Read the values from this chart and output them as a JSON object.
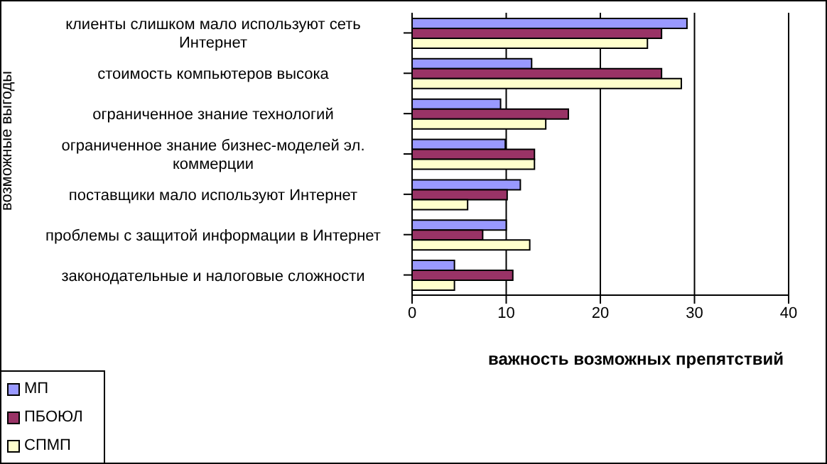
{
  "chart_data": {
    "type": "bar",
    "orientation": "horizontal",
    "xlabel": "важность возможных препятствий",
    "ylabel": "возможные выгоды",
    "categories": [
      "клиенты слишком мало используют сеть Интернет",
      "стоимость компьютеров высока",
      "ограниченное знание технологий",
      "ограниченное знание бизнес-моделей эл. коммерции",
      "поставщики мало используют Интернет",
      "проблемы с защитой информации в Интернет",
      "законодательные и налоговые сложности"
    ],
    "series": [
      {
        "name": "МП",
        "color": "#9999ff",
        "values": [
          29.2,
          12.7,
          9.4,
          9.9,
          11.5,
          10.0,
          4.5
        ]
      },
      {
        "name": "ПБОЮЛ",
        "color": "#993366",
        "values": [
          26.5,
          26.5,
          16.6,
          13.0,
          10.1,
          7.5,
          10.7
        ]
      },
      {
        "name": "СПМП",
        "color": "#ffffcc",
        "values": [
          25.0,
          28.6,
          14.2,
          13.0,
          5.9,
          12.5,
          4.5
        ]
      }
    ],
    "xlim": [
      0,
      40
    ],
    "xticks": [
      0,
      10,
      20,
      30,
      40
    ],
    "grid": "x",
    "legend": "bottom left"
  }
}
